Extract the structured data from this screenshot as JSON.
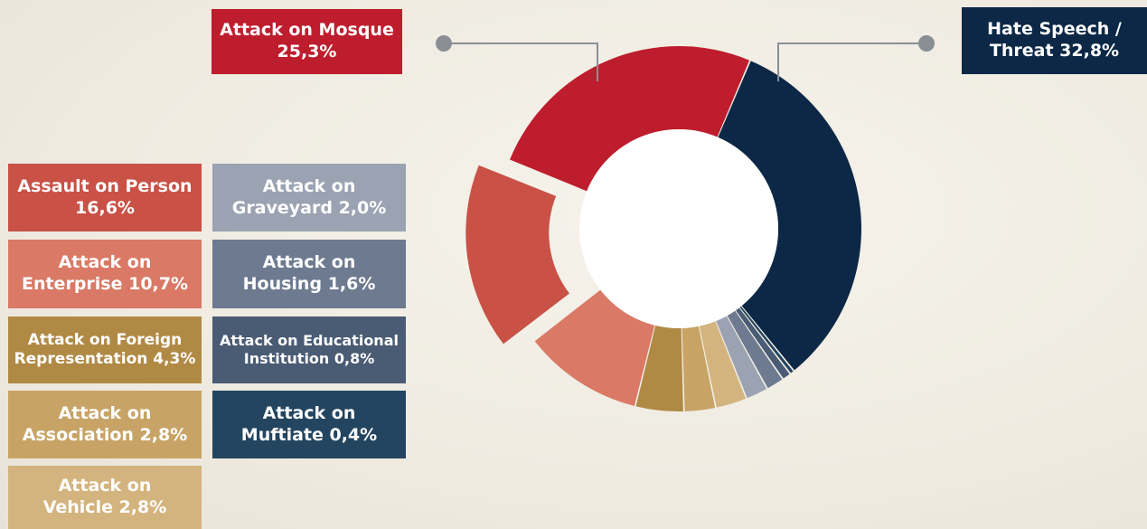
{
  "chart_data": {
    "type": "pie",
    "series": [
      {
        "name": "Hate Speech / Threat",
        "label": "Hate Speech /",
        "label2": "Threat 32,8%",
        "value": 32.8,
        "color": "#0c2846"
      },
      {
        "name": "Attack on Muftiate",
        "label": "Attack on",
        "label2": "Muftiate 0,4%",
        "value": 0.4,
        "color": "#23455f"
      },
      {
        "name": "Attack on Educational Institution",
        "label": "Attack on Educational",
        "label2": "Institution 0,8%",
        "value": 0.8,
        "color": "#4a5b74"
      },
      {
        "name": "Attack on Housing",
        "label": "Attack on",
        "label2": "Housing 1,6%",
        "value": 1.6,
        "color": "#6d7a90"
      },
      {
        "name": "Attack on Graveyard",
        "label": "Attack on",
        "label2": "Graveyard 2,0%",
        "value": 2.0,
        "color": "#9ba3b2"
      },
      {
        "name": "Attack on Vehicle",
        "label": "Attack on",
        "label2": "Vehicle 2,8%",
        "value": 2.8,
        "color": "#d3b47e"
      },
      {
        "name": "Attack on Association",
        "label": "Attack on",
        "label2": "Association 2,8%",
        "value": 2.8,
        "color": "#c7a466"
      },
      {
        "name": "Attack on Foreign Representation",
        "label": "Attack on Foreign",
        "label2": "Representation 4,3%",
        "value": 4.3,
        "color": "#b08a45"
      },
      {
        "name": "Attack on Enterprise",
        "label": "Attack on",
        "label2": "Enterprise 10,7%",
        "value": 10.7,
        "color": "#d97966"
      },
      {
        "name": "Assault on Person",
        "label": "Assault on Person",
        "label2": "16,6%",
        "value": 16.6,
        "color": "#c95146"
      },
      {
        "name": "Attack on Mosque",
        "label": "Attack on Mosque",
        "label2": "25,3%",
        "value": 25.3,
        "color": "#be1d2d"
      }
    ],
    "exploded": "Assault on Person",
    "donut": true,
    "legend": "boxes left and top"
  },
  "colors": {
    "leader_line": "#8a8f96",
    "center": "#ffffff"
  }
}
